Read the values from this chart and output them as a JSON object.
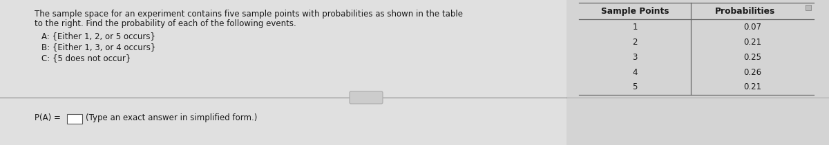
{
  "background_color": "#d8d8d8",
  "main_text_lines": [
    "The sample space for an experiment contains five sample points with probabilities as shown in the table",
    "to the right. Find the probability of each of the following events.",
    "A: {Either 1, 2, or 5 occurs}",
    "B: {Either 1, 3, or 4 occurs}",
    "C: {5 does not occur}"
  ],
  "table_header": [
    "Sample Points",
    "Probabilities"
  ],
  "table_data": [
    [
      "1",
      "0.07"
    ],
    [
      "2",
      "0.21"
    ],
    [
      "3",
      "0.25"
    ],
    [
      "4",
      "0.26"
    ],
    [
      "5",
      "0.21"
    ]
  ],
  "bottom_label": "P(A) =",
  "bottom_hint": "(Type an exact answer in simplified form.)",
  "font_size_main": 8.5,
  "font_size_table_header": 8.8,
  "font_size_table_data": 8.5,
  "font_size_bottom": 8.5,
  "text_color": "#1a1a1a",
  "table_line_color": "#666666",
  "divider_color": "#888888",
  "panel_bg": "#dcdcdc",
  "table_bg": "#d8d8d8",
  "input_box_color": "#ffffff"
}
